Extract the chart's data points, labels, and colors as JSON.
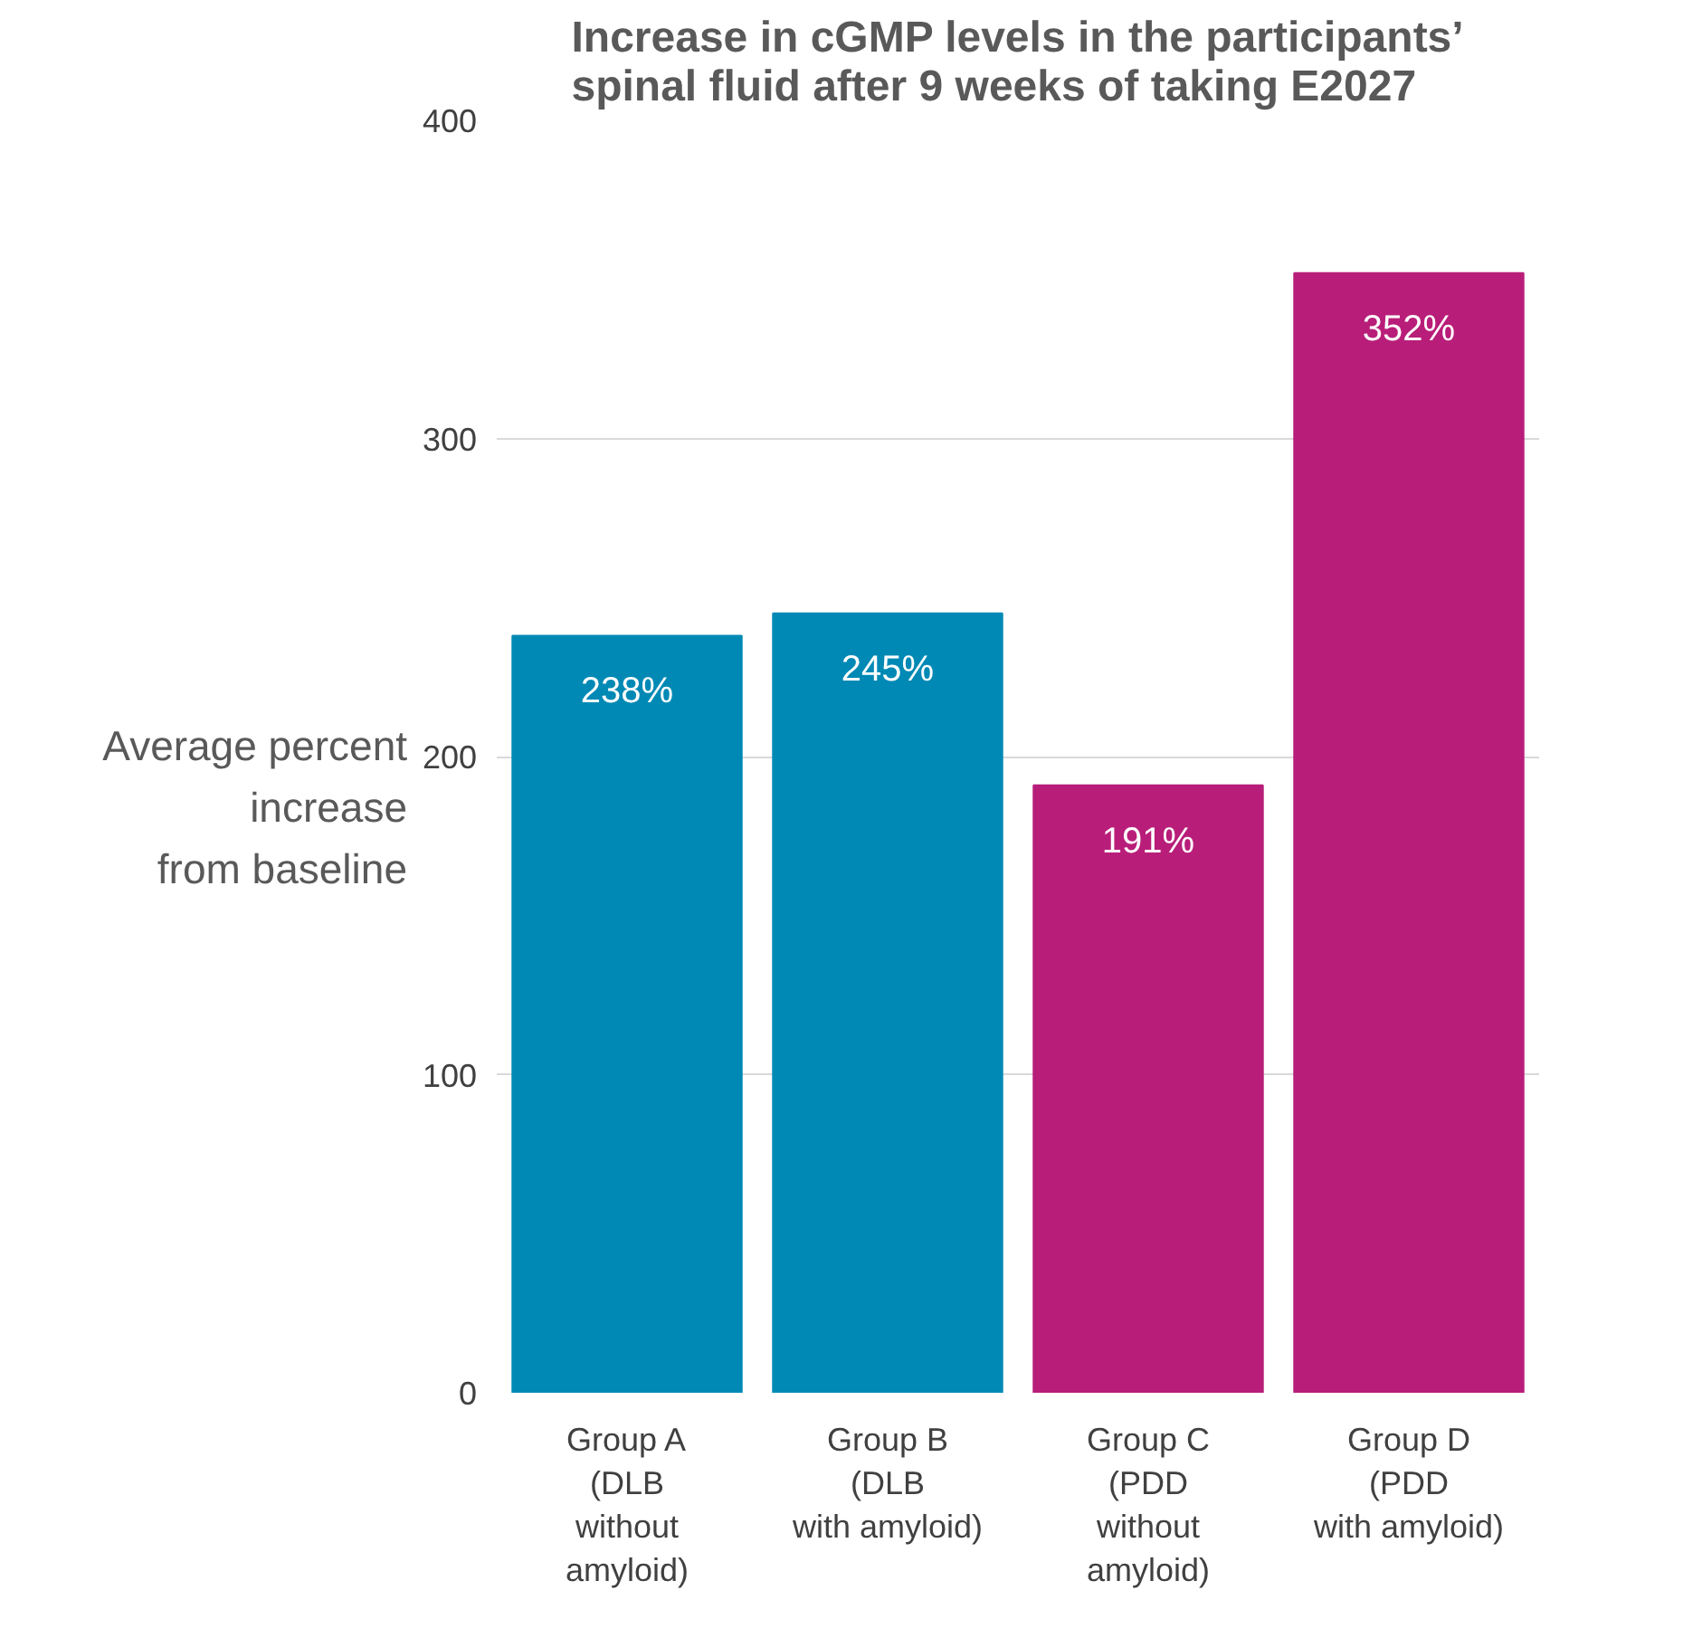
{
  "chart_data": {
    "type": "bar",
    "title": "Increase in cGMP levels in the participants’ spinal fluid after 9 weeks of taking E2027",
    "ylabel": "Average percent\nincrease\nfrom baseline",
    "categories": [
      "Group A\n(DLB\nwithout\namyloid)",
      "Group B\n(DLB\nwith amyloid)",
      "Group C\n(PDD\nwithout\namyloid)",
      "Group D\n(PDD\nwith amyloid)"
    ],
    "values": [
      238,
      245,
      191,
      352
    ],
    "value_labels": [
      "238%",
      "245%",
      "191%",
      "352%"
    ],
    "colors": [
      "#0089b5",
      "#0089b5",
      "#b81e79",
      "#b81e79"
    ],
    "ylim": [
      0,
      400
    ],
    "yticks": [
      0,
      100,
      200,
      300,
      400
    ],
    "grid": "y"
  }
}
